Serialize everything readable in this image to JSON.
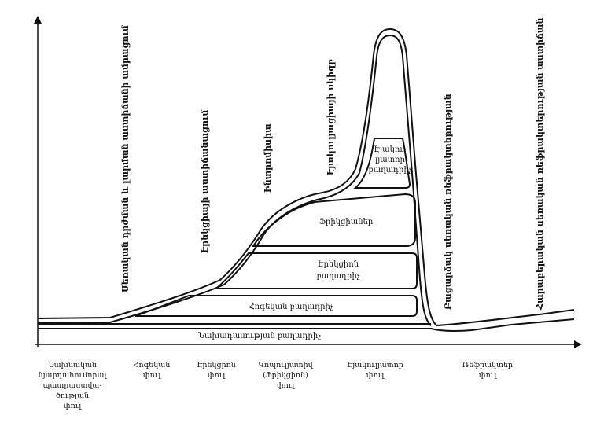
{
  "diagram": {
    "bands": {
      "base": "Նախադասության բաղադրիչ",
      "simple": "Հոգեկան բաղադրիչ",
      "mature": [
        "Էրեկցիոն",
        "բաղադրիչ"
      ],
      "physical": "Ֆրիկցիաներ",
      "ejaculatory": [
        "Էյակու-",
        "լյատոր",
        "բաղադրիչ"
      ]
    },
    "vertical_labels": {
      "erotic_stimulation": "Սեռական դրժման և լարման աստիճանի ամրացում",
      "erection": "Էրեկցիայի աստիճանացում",
      "intromission": "Ինտրոմիսիա",
      "ejaculation": "Էյակուլյացիայի սկիզբ",
      "detumescence": "Բացարձակ սեռական ռեֆրակտերության",
      "refractory": "Հարաբերական սեռական ռեֆրակտերության աստիճան"
    },
    "phases": [
      [
        "Նախնական",
        "նյարդահումորալ",
        "պատրաստվա-",
        "ծության",
        "փուլ"
      ],
      [
        "Հոգեկան",
        "փուլ"
      ],
      [
        "Էրեկցիոն",
        "փուլ"
      ],
      [
        "Կոպուլյատիվ",
        "(Ֆրիկցիոն)",
        "փուլ"
      ],
      [
        "Էյակուլյատոր",
        "փուլ"
      ],
      [
        "Ռեֆրակտեր",
        "փուլ"
      ]
    ]
  }
}
